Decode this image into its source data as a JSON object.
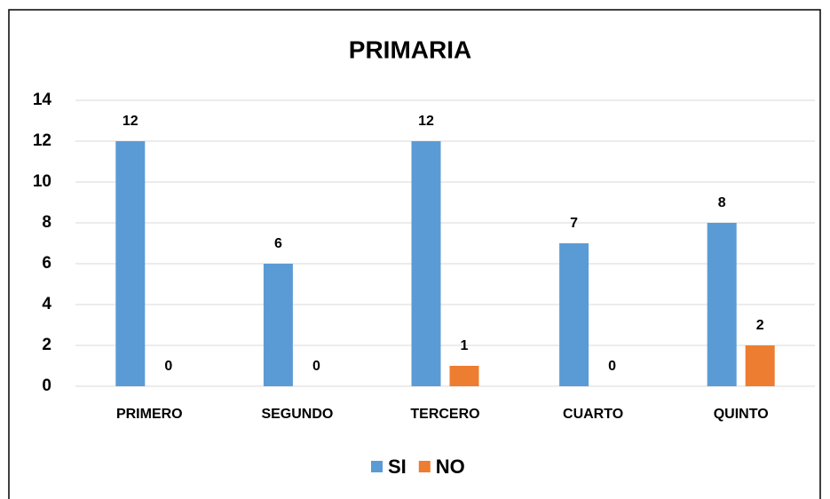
{
  "chart_data": {
    "type": "bar",
    "title": "PRIMARIA",
    "categories": [
      "PRIMERO",
      "SEGUNDO",
      "TERCERO",
      "CUARTO",
      "QUINTO"
    ],
    "series": [
      {
        "name": "SI",
        "color": "#5b9bd5",
        "values": [
          12,
          6,
          12,
          7,
          8
        ]
      },
      {
        "name": "NO",
        "color": "#ed7d31",
        "values": [
          0,
          0,
          1,
          0,
          2
        ]
      }
    ],
    "ylim": [
      0,
      14
    ],
    "yticks": [
      0,
      2,
      4,
      6,
      8,
      10,
      12,
      14
    ],
    "grid": true,
    "legend": "bottom"
  }
}
